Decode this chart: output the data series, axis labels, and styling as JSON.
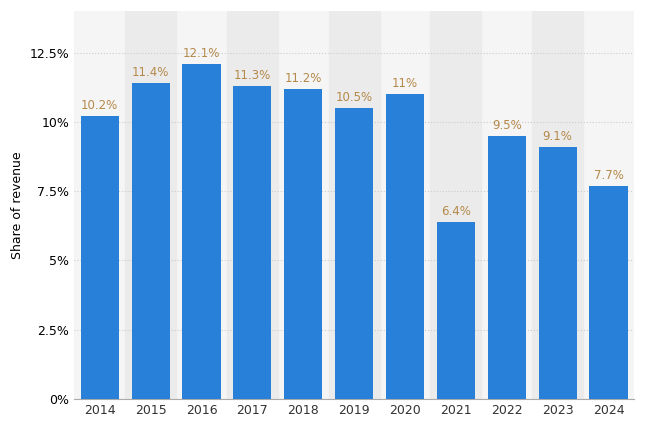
{
  "years": [
    "2014",
    "2015",
    "2016",
    "2017",
    "2018",
    "2019",
    "2020",
    "2021",
    "2022",
    "2023",
    "2024"
  ],
  "values": [
    10.2,
    11.4,
    12.1,
    11.3,
    11.2,
    10.5,
    11.0,
    6.4,
    9.5,
    9.1,
    7.7
  ],
  "labels": [
    "10.2%",
    "11.4%",
    "12.1%",
    "11.3%",
    "11.2%",
    "10.5%",
    "11%",
    "6.4%",
    "9.5%",
    "9.1%",
    "7.7%"
  ],
  "bar_color": "#2980d9",
  "label_color": "#b5894a",
  "background_color": "#ffffff",
  "plot_bg_color": "#f5f5f5",
  "band_color": "#ebebeb",
  "ylabel": "Share of revenue",
  "ylim": [
    0,
    14.0
  ],
  "yticks": [
    0,
    2.5,
    5.0,
    7.5,
    10.0,
    12.5
  ],
  "ytick_labels": [
    "0%",
    "2.5%",
    "5%",
    "7.5%",
    "10%",
    "12.5%"
  ],
  "grid_color": "#cccccc",
  "grid_linestyle": "dotted",
  "bar_width": 0.75,
  "label_fontsize": 8.5,
  "ylabel_fontsize": 9,
  "tick_fontsize": 9,
  "band_indices": [
    1,
    3,
    5,
    7,
    9
  ]
}
